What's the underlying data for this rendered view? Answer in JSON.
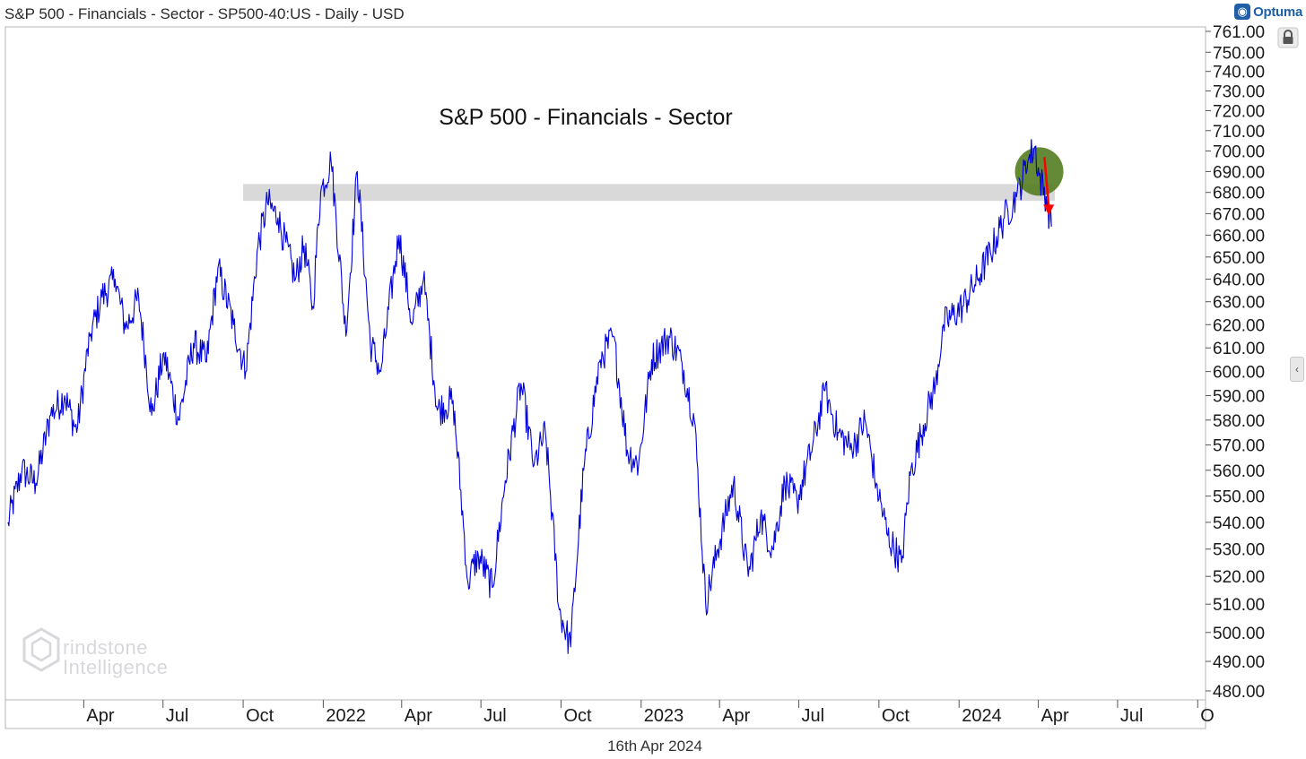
{
  "header": {
    "title": "S&P 500 - Financials - Sector - SP500-40:US - Daily - USD",
    "brand": "Optuma",
    "brand_icon": "optuma-logo-icon"
  },
  "footer": {
    "date": "16th Apr 2024"
  },
  "watermark": {
    "line1": "rindstone",
    "line2": "Intelligence",
    "logo_icon": "grindstone-hexagon-logo"
  },
  "icons": {
    "lock": "lock-icon",
    "collapse": "chevron-left-icon"
  },
  "colors": {
    "price_line": "#0000dd",
    "resistance_band": "#d9d9d9",
    "highlight_circle": "#4f7a1c",
    "arrow": "#ff0000"
  },
  "chart_data": {
    "type": "line",
    "title": "S&P 500 - Financials - Sector",
    "series": [
      {
        "name": "",
        "values": [
          [
            "2021-01-04",
            540
          ],
          [
            "2021-01-20",
            560
          ],
          [
            "2021-02-05",
            555
          ],
          [
            "2021-02-22",
            582
          ],
          [
            "2021-03-10",
            590
          ],
          [
            "2021-03-24",
            575
          ],
          [
            "2021-04-08",
            615
          ],
          [
            "2021-04-22",
            632
          ],
          [
            "2021-05-07",
            640
          ],
          [
            "2021-05-19",
            618
          ],
          [
            "2021-06-03",
            632
          ],
          [
            "2021-06-18",
            582
          ],
          [
            "2021-07-02",
            608
          ],
          [
            "2021-07-19",
            580
          ],
          [
            "2021-08-05",
            612
          ],
          [
            "2021-08-20",
            604
          ],
          [
            "2021-09-02",
            645
          ],
          [
            "2021-09-20",
            620
          ],
          [
            "2021-10-04",
            600
          ],
          [
            "2021-10-18",
            655
          ],
          [
            "2021-10-29",
            675
          ],
          [
            "2021-11-10",
            668
          ],
          [
            "2021-11-30",
            640
          ],
          [
            "2021-12-10",
            655
          ],
          [
            "2021-12-20",
            628
          ],
          [
            "2021-12-29",
            680
          ],
          [
            "2022-01-10",
            695
          ],
          [
            "2022-01-27",
            615
          ],
          [
            "2022-02-09",
            690
          ],
          [
            "2022-02-24",
            612
          ],
          [
            "2022-03-08",
            600
          ],
          [
            "2022-03-29",
            660
          ],
          [
            "2022-04-13",
            620
          ],
          [
            "2022-04-26",
            640
          ],
          [
            "2022-05-12",
            584
          ],
          [
            "2022-05-30",
            588
          ],
          [
            "2022-06-16",
            518
          ],
          [
            "2022-06-28",
            528
          ],
          [
            "2022-07-14",
            516
          ],
          [
            "2022-07-29",
            556
          ],
          [
            "2022-08-16",
            595
          ],
          [
            "2022-08-31",
            562
          ],
          [
            "2022-09-13",
            575
          ],
          [
            "2022-09-29",
            508
          ],
          [
            "2022-10-12",
            495
          ],
          [
            "2022-10-27",
            560
          ],
          [
            "2022-11-15",
            605
          ],
          [
            "2022-11-30",
            615
          ],
          [
            "2022-12-16",
            568
          ],
          [
            "2022-12-29",
            562
          ],
          [
            "2023-01-13",
            605
          ],
          [
            "2023-02-02",
            615
          ],
          [
            "2023-02-16",
            605
          ],
          [
            "2023-03-03",
            580
          ],
          [
            "2023-03-16",
            510
          ],
          [
            "2023-03-30",
            530
          ],
          [
            "2023-04-17",
            555
          ],
          [
            "2023-05-04",
            520
          ],
          [
            "2023-05-18",
            542
          ],
          [
            "2023-06-01",
            530
          ],
          [
            "2023-06-15",
            555
          ],
          [
            "2023-06-29",
            548
          ],
          [
            "2023-07-17",
            570
          ],
          [
            "2023-07-31",
            592
          ],
          [
            "2023-08-15",
            575
          ],
          [
            "2023-08-31",
            568
          ],
          [
            "2023-09-15",
            580
          ],
          [
            "2023-09-28",
            555
          ],
          [
            "2023-10-11",
            535
          ],
          [
            "2023-10-27",
            525
          ],
          [
            "2023-11-06",
            558
          ],
          [
            "2023-11-21",
            578
          ],
          [
            "2023-12-05",
            595
          ],
          [
            "2023-12-14",
            620
          ],
          [
            "2024-01-05",
            628
          ],
          [
            "2024-01-22",
            640
          ],
          [
            "2024-02-06",
            652
          ],
          [
            "2024-02-22",
            668
          ],
          [
            "2024-03-07",
            678
          ],
          [
            "2024-03-20",
            695
          ],
          [
            "2024-03-28",
            702
          ],
          [
            "2024-04-02",
            688
          ],
          [
            "2024-04-10",
            678
          ],
          [
            "2024-04-16",
            664
          ]
        ]
      }
    ],
    "y_axis": {
      "ticks": [
        "761.00",
        "750.00",
        "740.00",
        "730.00",
        "720.00",
        "710.00",
        "700.00",
        "690.00",
        "680.00",
        "670.00",
        "660.00",
        "650.00",
        "640.00",
        "630.00",
        "620.00",
        "610.00",
        "600.00",
        "590.00",
        "580.00",
        "570.00",
        "560.00",
        "550.00",
        "540.00",
        "530.00",
        "520.00",
        "510.00",
        "500.00",
        "490.00",
        "480.00"
      ],
      "range": [
        480,
        761
      ],
      "scale": "log"
    },
    "x_axis": {
      "ticks": [
        {
          "label": "Apr",
          "date": "2021-04-01"
        },
        {
          "label": "Jul",
          "date": "2021-07-01"
        },
        {
          "label": "Oct",
          "date": "2021-10-01"
        },
        {
          "label": "2022",
          "date": "2022-01-01"
        },
        {
          "label": "Apr",
          "date": "2022-04-01"
        },
        {
          "label": "Jul",
          "date": "2022-07-01"
        },
        {
          "label": "Oct",
          "date": "2022-10-01"
        },
        {
          "label": "2023",
          "date": "2023-01-01"
        },
        {
          "label": "Apr",
          "date": "2023-04-01"
        },
        {
          "label": "Jul",
          "date": "2023-07-01"
        },
        {
          "label": "Oct",
          "date": "2023-10-01"
        },
        {
          "label": "2024",
          "date": "2024-01-01"
        },
        {
          "label": "Apr",
          "date": "2024-04-01"
        },
        {
          "label": "Jul",
          "date": "2024-07-01"
        },
        {
          "label": "O",
          "date": "2024-10-01"
        }
      ],
      "range": [
        "2021-01-01",
        "2024-10-10"
      ]
    },
    "annotations": {
      "resistance_band": {
        "low": 676,
        "high": 684,
        "from": "2021-10-01",
        "to": "2024-04-20"
      },
      "highlight_circle": {
        "date": "2024-04-02",
        "value": 690
      },
      "down_arrow": {
        "from": [
          "2024-04-08",
          697
        ],
        "to": [
          "2024-04-13",
          670
        ]
      }
    },
    "grid": false,
    "legend": "none"
  }
}
